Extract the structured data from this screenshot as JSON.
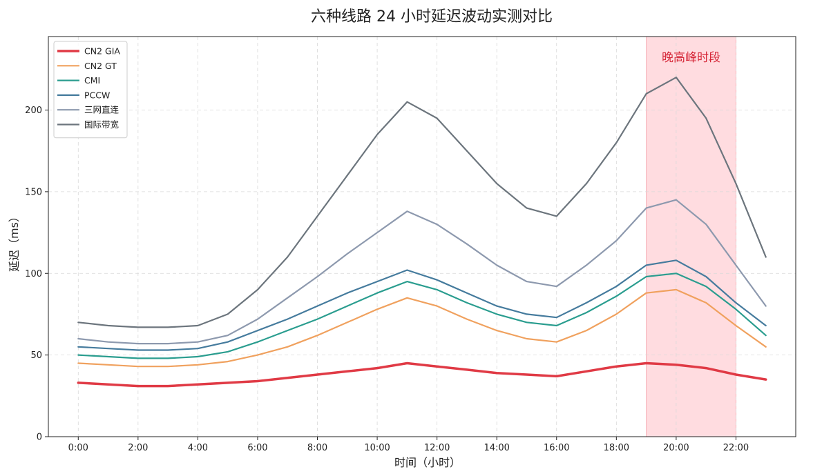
{
  "chart_data": {
    "type": "line",
    "title": "六种线路 24 小时延迟波动实测对比",
    "xlabel": "时间（小时）",
    "ylabel": "延迟（ms）",
    "x": [
      0,
      1,
      2,
      3,
      4,
      5,
      6,
      7,
      8,
      9,
      10,
      11,
      12,
      13,
      14,
      15,
      16,
      17,
      18,
      19,
      20,
      21,
      22,
      23
    ],
    "xlim": [
      -1,
      24
    ],
    "ylim": [
      0,
      245
    ],
    "xticks": [
      0,
      2,
      4,
      6,
      8,
      10,
      12,
      14,
      16,
      18,
      20,
      22
    ],
    "xtick_labels": [
      "0:00",
      "2:00",
      "4:00",
      "6:00",
      "8:00",
      "10:00",
      "12:00",
      "14:00",
      "16:00",
      "18:00",
      "20:00",
      "22:00"
    ],
    "yticks": [
      0,
      50,
      100,
      150,
      200
    ],
    "ytick_labels": [
      "0",
      "50",
      "100",
      "150",
      "200"
    ],
    "grid": true,
    "legend_position": "top-left",
    "series": [
      {
        "name": "CN2 GIA",
        "color": "#e03a45",
        "values": [
          33,
          32,
          31,
          31,
          32,
          33,
          34,
          36,
          38,
          40,
          42,
          45,
          43,
          41,
          39,
          38,
          37,
          40,
          43,
          45,
          44,
          42,
          38,
          35
        ]
      },
      {
        "name": "CN2 GT",
        "color": "#f0a15e",
        "values": [
          45,
          44,
          43,
          43,
          44,
          46,
          50,
          55,
          62,
          70,
          78,
          85,
          80,
          72,
          65,
          60,
          58,
          65,
          75,
          88,
          90,
          82,
          68,
          55
        ]
      },
      {
        "name": "CMI",
        "color": "#2a9d8f",
        "values": [
          50,
          49,
          48,
          48,
          49,
          52,
          58,
          65,
          72,
          80,
          88,
          95,
          90,
          82,
          75,
          70,
          68,
          76,
          86,
          98,
          100,
          92,
          78,
          62
        ]
      },
      {
        "name": "PCCW",
        "color": "#457b9d",
        "values": [
          55,
          54,
          53,
          53,
          54,
          58,
          65,
          72,
          80,
          88,
          95,
          102,
          96,
          88,
          80,
          75,
          73,
          82,
          92,
          105,
          108,
          98,
          82,
          68
        ]
      },
      {
        "name": "三网直连",
        "color": "#8d99ae",
        "values": [
          60,
          58,
          57,
          57,
          58,
          62,
          72,
          85,
          98,
          112,
          125,
          138,
          130,
          118,
          105,
          95,
          92,
          105,
          120,
          140,
          145,
          130,
          105,
          80
        ]
      },
      {
        "name": "国际带宽",
        "color": "#6c757d",
        "values": [
          70,
          68,
          67,
          67,
          68,
          75,
          90,
          110,
          135,
          160,
          185,
          205,
          195,
          175,
          155,
          140,
          135,
          155,
          180,
          210,
          220,
          195,
          155,
          110
        ]
      }
    ],
    "annotations": [
      {
        "type": "span",
        "x_start": 19,
        "x_end": 22,
        "label": "晚高峰时段",
        "fill": "#ffc0c6",
        "text_color": "#d62839"
      }
    ]
  }
}
